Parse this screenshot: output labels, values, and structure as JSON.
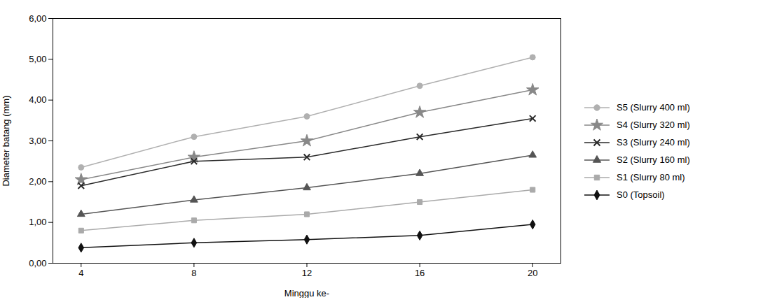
{
  "chart_data": {
    "type": "line",
    "xlabel": "Minggu ke-",
    "ylabel": "Diameter batang (mm)",
    "x": [
      4,
      8,
      12,
      16,
      20
    ],
    "series": [
      {
        "name": "S5 (Slurry 400 ml)",
        "color": "#b0b0b0",
        "marker": "circle",
        "line_style": "solid",
        "values": [
          2.35,
          3.1,
          3.6,
          4.35,
          5.05
        ]
      },
      {
        "name": "S4 (Slurry 320 ml)",
        "color": "#888888",
        "marker": "star",
        "line_style": "solid",
        "values": [
          2.05,
          2.6,
          3.0,
          3.7,
          4.25
        ]
      },
      {
        "name": "S3 (Slurry 240 ml)",
        "color": "#2a2a2a",
        "marker": "times",
        "line_style": "solid",
        "values": [
          1.9,
          2.5,
          2.6,
          3.1,
          3.55
        ]
      },
      {
        "name": "S2 (Slurry 160 ml)",
        "color": "#555555",
        "marker": "triangle",
        "line_style": "solid",
        "values": [
          1.2,
          1.55,
          1.85,
          2.2,
          2.65
        ]
      },
      {
        "name": "S1 (Slurry 80 ml)",
        "color": "#aaaaaa",
        "marker": "square",
        "line_style": "solid",
        "values": [
          0.8,
          1.05,
          1.2,
          1.5,
          1.8
        ]
      },
      {
        "name": "S0 (Topsoil)",
        "color": "#111111",
        "marker": "diamond",
        "line_style": "solid",
        "values": [
          0.38,
          0.5,
          0.58,
          0.68,
          0.95
        ]
      }
    ],
    "xlim": [
      3,
      21
    ],
    "xticks": [
      4,
      8,
      12,
      16,
      20
    ],
    "ylim": [
      0.0,
      6.0
    ],
    "yticks": [
      {
        "value": 0.0,
        "label": "0,00"
      },
      {
        "value": 1.0,
        "label": "1,00"
      },
      {
        "value": 2.0,
        "label": "2,00"
      },
      {
        "value": 3.0,
        "label": "3,00"
      },
      {
        "value": 4.0,
        "label": "4,00"
      },
      {
        "value": 5.0,
        "label": "5,00"
      },
      {
        "value": 6.0,
        "label": "6,00"
      }
    ],
    "grid": false,
    "legend": "right"
  }
}
